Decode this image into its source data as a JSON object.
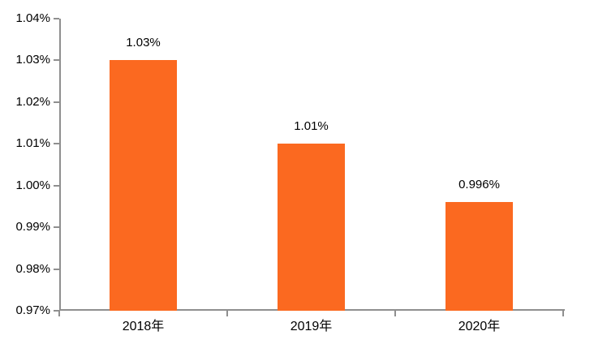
{
  "chart_data": {
    "type": "bar",
    "title": "",
    "xlabel": "",
    "ylabel": "",
    "categories": [
      "2018年",
      "2019年",
      "2020年"
    ],
    "values": [
      1.03,
      1.01,
      0.996
    ],
    "data_labels": [
      "1.03%",
      "1.01%",
      "0.996%"
    ],
    "unit": "%",
    "ylim": [
      0.97,
      1.04
    ],
    "ytick_step": 0.01,
    "ytick_labels": [
      "0.97%",
      "0.98%",
      "0.99%",
      "1.00%",
      "1.01%",
      "1.02%",
      "1.03%",
      "1.04%"
    ],
    "grid": false,
    "legend": false,
    "colors": {
      "bar": "#fb6920",
      "axis": "#8f8f8f",
      "text": "#000000",
      "background": "#ffffff"
    }
  }
}
